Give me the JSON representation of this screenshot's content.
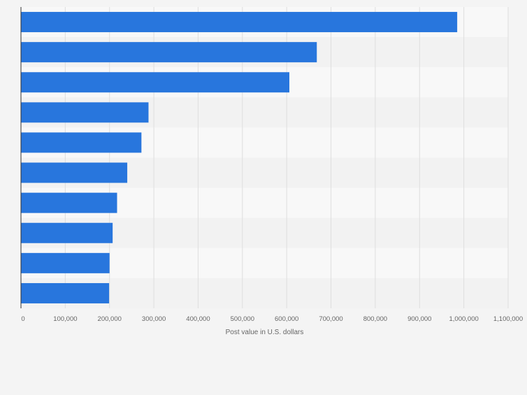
{
  "chart_data": {
    "type": "bar",
    "orientation": "horizontal",
    "categories": [
      "",
      "",
      "",
      "",
      "",
      "",
      "",
      "",
      "",
      ""
    ],
    "values": [
      985000,
      668000,
      606000,
      288000,
      272000,
      240000,
      217000,
      207000,
      200000,
      199000
    ],
    "title": "",
    "xlabel": "Post value in U.S. dollars",
    "ylabel": "",
    "xlim": [
      0,
      1100000
    ],
    "x_ticks": [
      0,
      100000,
      200000,
      300000,
      400000,
      500000,
      600000,
      700000,
      800000,
      900000,
      1000000,
      1100000
    ],
    "x_tick_labels": [
      "0",
      "100,000",
      "200,000",
      "300,000",
      "400,000",
      "500,000",
      "600,000",
      "700,000",
      "800,000",
      "900,000",
      "1,000,000",
      "1,100,000"
    ],
    "grid": true,
    "legend": "none",
    "colors": {
      "bar": "#2876dd",
      "band_light": "#f8f8f8",
      "band_dark": "#f2f2f2",
      "grid": "#dedede",
      "axis": "#333333",
      "tick_text": "#666666"
    }
  }
}
